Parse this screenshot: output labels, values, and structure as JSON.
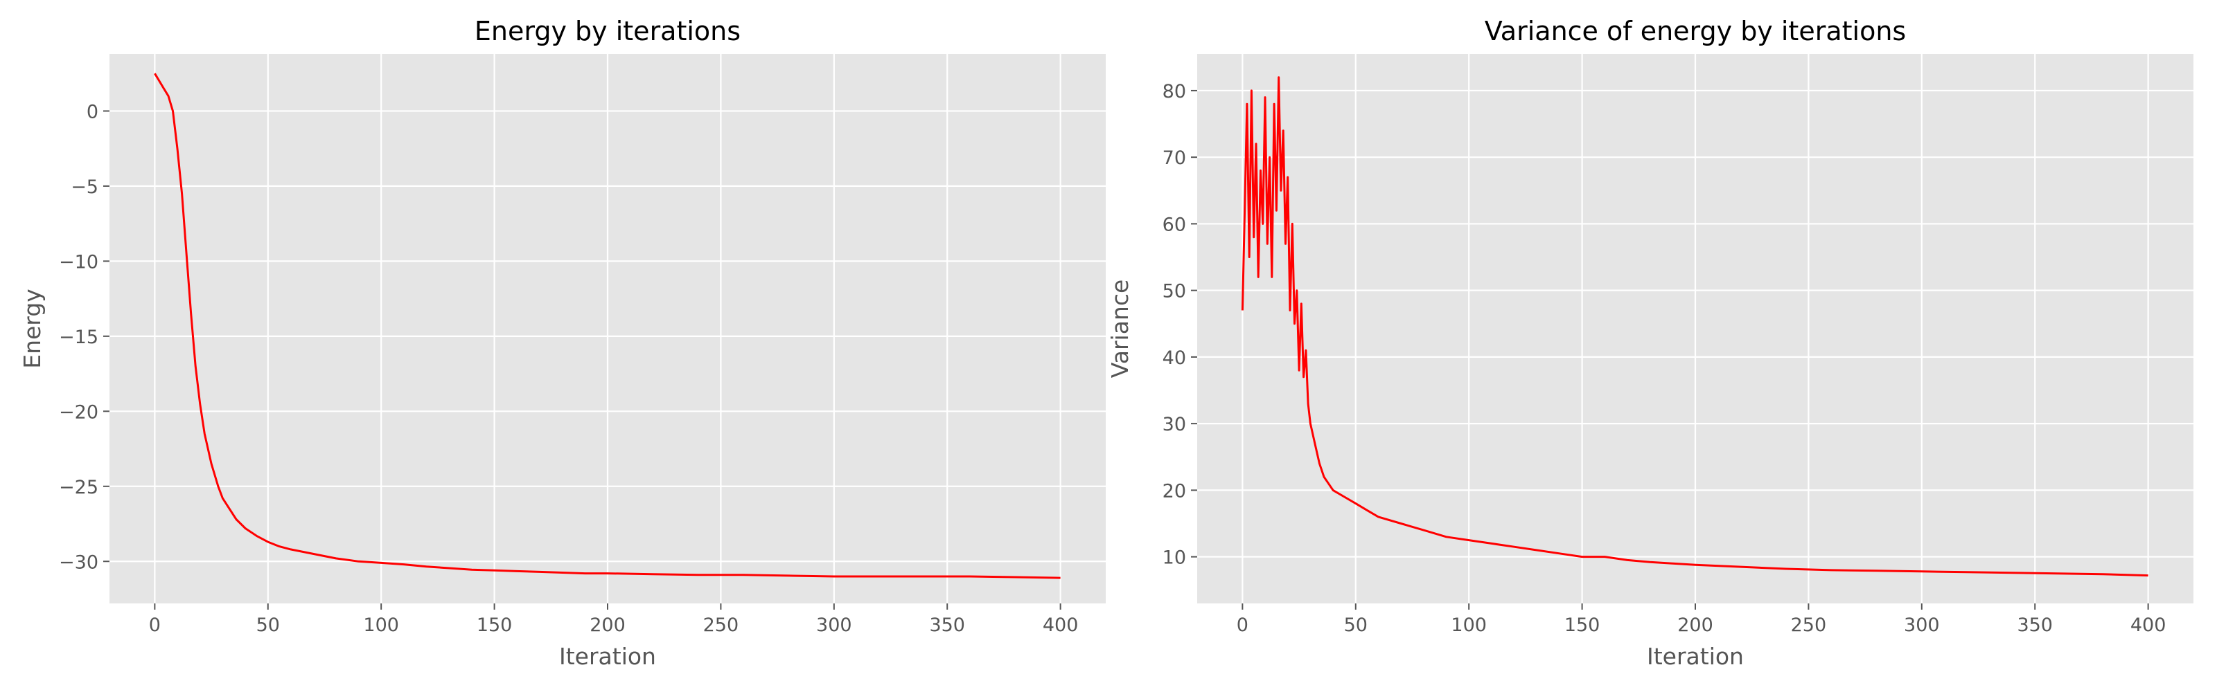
{
  "chart_data": [
    {
      "type": "line",
      "title": "Energy by iterations",
      "xlabel": "Iteration",
      "ylabel": "Energy",
      "xlim": [
        -20,
        420
      ],
      "ylim": [
        -32.8,
        3.8
      ],
      "xticks": [
        0,
        50,
        100,
        150,
        200,
        250,
        300,
        350,
        400
      ],
      "yticks": [
        0,
        -5,
        -10,
        -15,
        -20,
        -25,
        -30
      ],
      "xtick_labels": [
        "0",
        "50",
        "100",
        "150",
        "200",
        "250",
        "300",
        "350",
        "400"
      ],
      "ytick_labels": [
        "0",
        "−5",
        "−10",
        "−15",
        "−20",
        "−25",
        "−30"
      ],
      "grid": true,
      "series": [
        {
          "color": "#ff0000",
          "x": [
            0,
            2,
            4,
            6,
            8,
            10,
            12,
            14,
            16,
            18,
            20,
            22,
            25,
            28,
            30,
            33,
            36,
            40,
            45,
            50,
            55,
            60,
            70,
            80,
            90,
            100,
            110,
            120,
            130,
            140,
            150,
            160,
            170,
            180,
            190,
            200,
            220,
            240,
            260,
            280,
            300,
            320,
            340,
            360,
            380,
            400
          ],
          "y": [
            2.5,
            2.0,
            1.5,
            1.0,
            0.0,
            -2.5,
            -5.5,
            -9.5,
            -13.5,
            -17.0,
            -19.5,
            -21.5,
            -23.5,
            -25.0,
            -25.8,
            -26.5,
            -27.2,
            -27.8,
            -28.3,
            -28.7,
            -29.0,
            -29.2,
            -29.5,
            -29.8,
            -30.0,
            -30.1,
            -30.2,
            -30.35,
            -30.45,
            -30.55,
            -30.6,
            -30.65,
            -30.7,
            -30.75,
            -30.8,
            -30.8,
            -30.85,
            -30.9,
            -30.9,
            -30.95,
            -31.0,
            -31.0,
            -31.0,
            -31.0,
            -31.05,
            -31.1
          ]
        }
      ]
    },
    {
      "type": "line",
      "title": "Variance of energy by iterations",
      "xlabel": "Iteration",
      "ylabel": "Variance",
      "xlim": [
        -20,
        420
      ],
      "ylim": [
        3.0,
        85.5
      ],
      "xticks": [
        0,
        50,
        100,
        150,
        200,
        250,
        300,
        350,
        400
      ],
      "yticks": [
        10,
        20,
        30,
        40,
        50,
        60,
        70,
        80
      ],
      "xtick_labels": [
        "0",
        "50",
        "100",
        "150",
        "200",
        "250",
        "300",
        "350",
        "400"
      ],
      "ytick_labels": [
        "10",
        "20",
        "30",
        "40",
        "50",
        "60",
        "70",
        "80"
      ],
      "grid": true,
      "series": [
        {
          "color": "#ff0000",
          "x": [
            0,
            1,
            2,
            3,
            4,
            5,
            6,
            7,
            8,
            9,
            10,
            11,
            12,
            13,
            14,
            15,
            16,
            17,
            18,
            19,
            20,
            21,
            22,
            23,
            24,
            25,
            26,
            27,
            28,
            29,
            30,
            32,
            34,
            36,
            38,
            40,
            45,
            50,
            55,
            60,
            70,
            80,
            90,
            100,
            110,
            120,
            130,
            140,
            150,
            160,
            170,
            180,
            190,
            200,
            220,
            240,
            260,
            280,
            300,
            320,
            340,
            360,
            380,
            400
          ],
          "y": [
            47,
            62,
            78,
            55,
            80,
            58,
            72,
            52,
            68,
            60,
            79,
            57,
            70,
            52,
            78,
            62,
            82,
            65,
            74,
            57,
            67,
            47,
            60,
            45,
            50,
            38,
            48,
            37,
            41,
            33,
            30,
            27,
            24,
            22,
            21,
            20,
            19,
            18,
            17,
            16,
            15,
            14,
            13,
            12.5,
            12,
            11.5,
            11,
            10.5,
            10,
            10,
            9.5,
            9.2,
            9,
            8.8,
            8.5,
            8.2,
            8,
            7.9,
            7.8,
            7.7,
            7.6,
            7.5,
            7.4,
            7.2
          ]
        }
      ]
    }
  ]
}
